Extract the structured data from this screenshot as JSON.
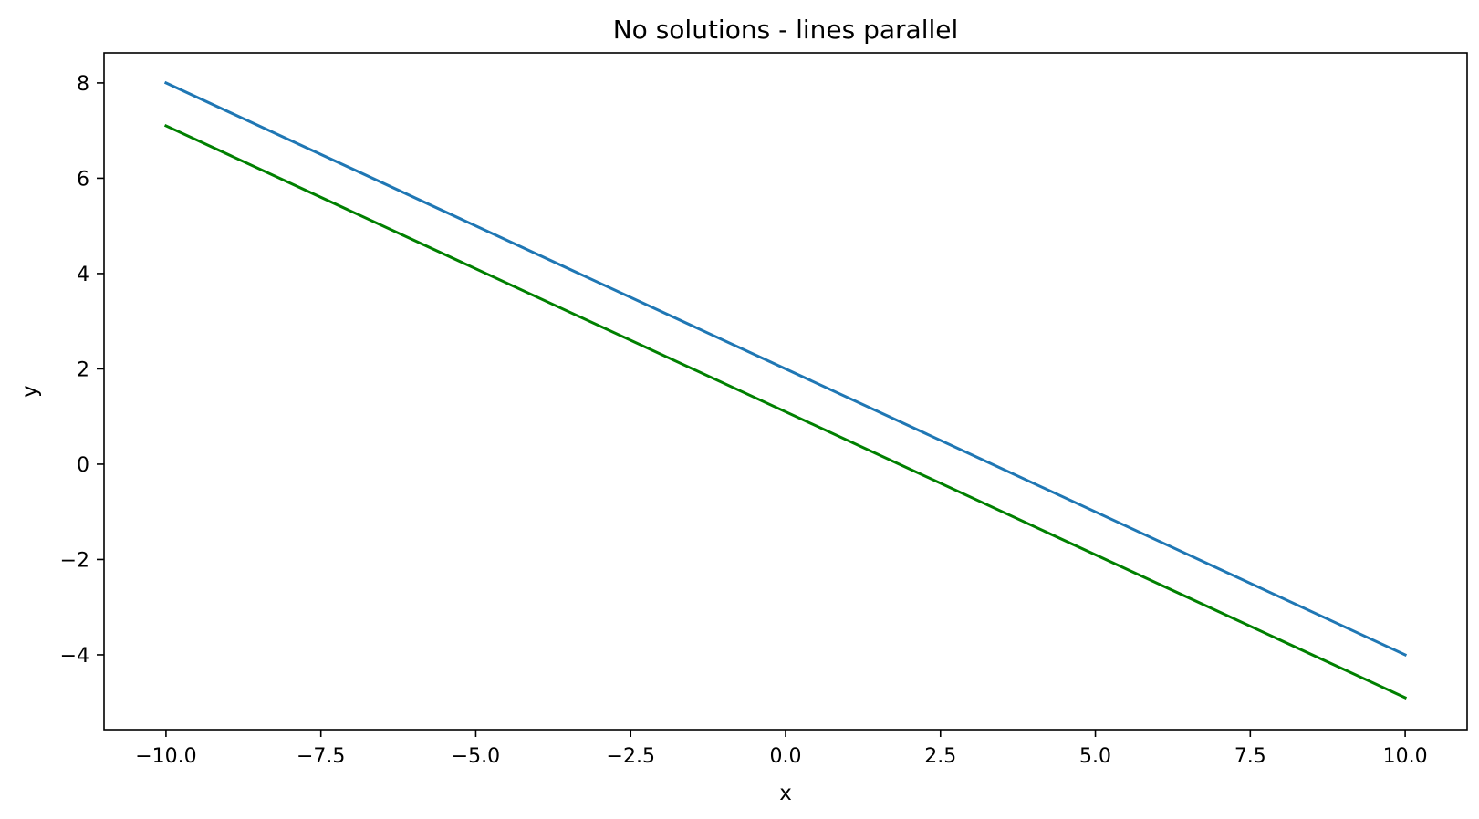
{
  "chart_data": {
    "type": "line",
    "title": "No solutions - lines parallel",
    "xlabel": "x",
    "ylabel": "y",
    "xlim": [
      -11.0,
      11.0
    ],
    "ylim": [
      -5.57,
      8.63
    ],
    "x_ticks": [
      -10.0,
      -7.5,
      -5.0,
      -2.5,
      0.0,
      2.5,
      5.0,
      7.5,
      10.0
    ],
    "x_tick_labels": [
      "−10.0",
      "−7.5",
      "−5.0",
      "−2.5",
      "0.0",
      "2.5",
      "5.0",
      "7.5",
      "10.0"
    ],
    "y_ticks": [
      -4,
      -2,
      0,
      2,
      4,
      6,
      8
    ],
    "y_tick_labels": [
      "−4",
      "−2",
      "0",
      "2",
      "4",
      "6",
      "8"
    ],
    "grid": false,
    "legend": "none",
    "series": [
      {
        "color": "#1f77b4",
        "x": [
          -10,
          10
        ],
        "y": [
          8,
          -4
        ]
      },
      {
        "color": "#008000",
        "x": [
          -10,
          10
        ],
        "y": [
          7.1,
          -4.9
        ]
      }
    ]
  }
}
